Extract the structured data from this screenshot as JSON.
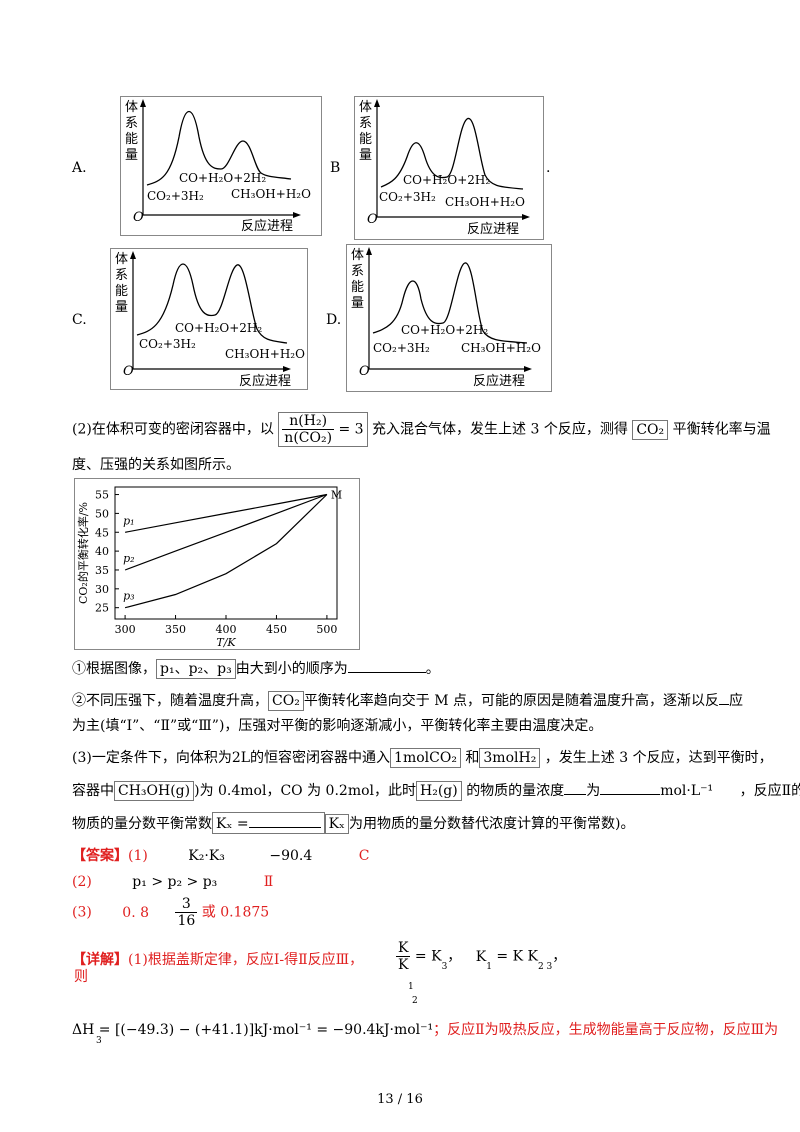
{
  "options": {
    "A": {
      "label": "A.",
      "y_axis": [
        "体",
        "系",
        "能",
        "量"
      ],
      "origin": "O",
      "x_axis": "反应进程",
      "species": {
        "left": "CO₂+3H₂",
        "mid": "CO+H₂O+2H₂",
        "right": "CH₃OH+H₂O"
      }
    },
    "B": {
      "label": "B",
      "trail": ".",
      "y_axis": [
        "体",
        "系",
        "能",
        "量"
      ],
      "origin": "O",
      "x_axis": "反应进程",
      "species": {
        "left": "CO₂+3H₂",
        "mid": "CO+H₂O+2H₂",
        "right": "CH₃OH+H₂O"
      }
    },
    "C": {
      "label": "C.",
      "y_axis": [
        "体",
        "系",
        "能",
        "量"
      ],
      "origin": "O",
      "x_axis": "反应进程",
      "species": {
        "left": "CO₂+3H₂",
        "mid": "CO+H₂O+2H₂",
        "right": "CH₃OH+H₂O"
      }
    },
    "D": {
      "label": "D.",
      "y_axis": [
        "体",
        "系",
        "能",
        "量"
      ],
      "origin": "O",
      "x_axis": "反应进程",
      "species": {
        "left": "CO₂+3H₂",
        "mid": "CO+H₂O+2H₂",
        "right": "CH₃OH+H₂O"
      }
    }
  },
  "q2": {
    "line1_a": "(2)在体积可变的密闭容器中，以",
    "frac_num": "n(H₂)",
    "frac_den": "n(CO₂)",
    "frac_val": "= 3",
    "line1_b": "充入混合气体，发生上述 3 个反应，测得",
    "co2": "CO₂",
    "line1_c": "平衡转化率与温",
    "line2": "度、压强的关系如图所示。"
  },
  "chart_data": {
    "type": "line",
    "x": [
      300,
      500
    ],
    "xticks": [
      "300",
      "350",
      "400",
      "450",
      "500"
    ],
    "yticks": [
      "25",
      "30",
      "35",
      "40",
      "45",
      "50",
      "55"
    ],
    "xlabel": "T/K",
    "ylabel": "CO₂的平衡转化率/%",
    "xlim": [
      290,
      510
    ],
    "ylim": [
      22,
      57
    ],
    "point_label": "M",
    "series": [
      {
        "name": "p₁",
        "x": [
          300,
          350,
          400,
          450,
          500
        ],
        "values": [
          45,
          47.5,
          50,
          52.5,
          55
        ]
      },
      {
        "name": "p₂",
        "x": [
          300,
          350,
          400,
          450,
          500
        ],
        "values": [
          35,
          40,
          45,
          50,
          55
        ]
      },
      {
        "name": "p₃",
        "x": [
          300,
          350,
          400,
          450,
          500
        ],
        "values": [
          25,
          28.5,
          34,
          42,
          55
        ]
      }
    ]
  },
  "q2_items": {
    "i1_a": "①根据图像，",
    "i1_box": "p₁、p₂、p₃",
    "i1_b": "由大到小的顺序为",
    "i1_c": "。",
    "i2_a": "②不同压强下，随着温度升高，",
    "i2_box": "CO₂",
    "i2_b": "平衡转化率趋向交于 M 点，可能的原因是随着温度升高，逐渐以反",
    "i2_c": "应",
    "i2_line2": "为主(填“Ⅰ”、“Ⅱ”或“Ⅲ”)，压强对平衡的影响逐渐减小，平衡转化率主要由温度决定。"
  },
  "q3": {
    "a": "(3)一定条件下，向体积为2L的恒容密闭容器中通入",
    "box1": "1molCO₂",
    "b": "和",
    "box2": "3molH₂",
    "c": "，发生上述 3 个反应，达到平衡时，",
    "d": "容器中",
    "box3": "CH₃OH(g)",
    "e": ")为 0.4mol，CO 为 0.2mol，此时",
    "box4": "H₂(g)",
    "f": "的物质的量浓度",
    "g": "为",
    "unit": "mol·L⁻¹",
    "h": "，反应Ⅱ的",
    "i": "物质的量分数平衡常数",
    "kx": "Kₓ =",
    "j": "(",
    "kx2": "Kₓ",
    "k": "为用物质的量分数替代浓度计算的平衡常数)。"
  },
  "answer": {
    "tag": "【答案】",
    "r1_num": "(1)",
    "r1_a": "K₂·K₃",
    "r1_b": "−90.4",
    "r1_c": "C",
    "r2_num": "(2)",
    "r2_a": "p₁ > p₂ > p₃",
    "r2_b": "Ⅱ",
    "r3_num": "(3)",
    "r3_a": "0. 8",
    "r3_num_frac": "3",
    "r3_den_frac": "16",
    "r3_b": "或 0.1875"
  },
  "detail": {
    "tag": "【详解】",
    "a": "(1)根据盖斯定律，反应Ⅰ-得Ⅱ反应Ⅲ，",
    "then": "则",
    "k_num": "K",
    "k_den": "K",
    "k_sub": "1",
    "k_sub2": "2",
    "eq1": "= K",
    "eq1_sub": "3",
    "eq2": "K",
    "eq2_sub": "1",
    "eq3": "= K  K",
    "eq3_sub": "2    3",
    "dh_line": "ΔH  = [(−49.3) − (+41.1)]kJ·mol⁻¹ = −90.4kJ·mol⁻¹",
    "dh_sub": "3",
    "dh_tail": "；反应Ⅱ为吸热反应，生成物能量高于反应物，反应Ⅲ为"
  },
  "footer": "13 / 16"
}
